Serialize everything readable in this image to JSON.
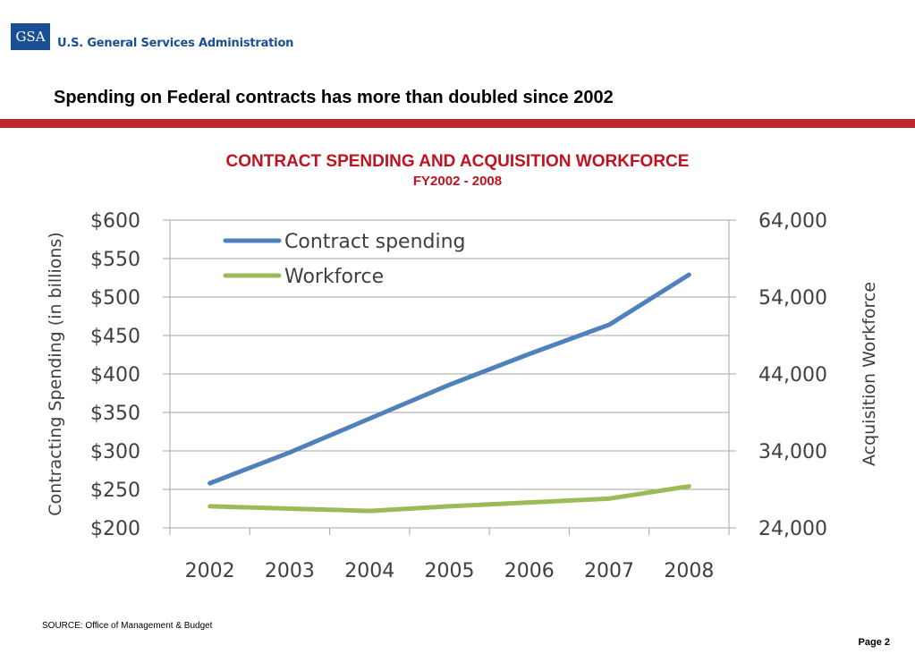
{
  "header": {
    "logo_text": "GSA",
    "agency_name": "U.S. General Services Administration",
    "headline": "Spending on Federal contracts has more than doubled since 2002"
  },
  "chart_data": {
    "type": "line",
    "title": "CONTRACT SPENDING AND ACQUISITION WORKFORCE",
    "subtitle": "FY2002 - 2008",
    "categories": [
      "2002",
      "2003",
      "2004",
      "2005",
      "2006",
      "2007",
      "2008"
    ],
    "ylabel": "Contracting Spending (in billions)",
    "y2label": "Acquisition Workforce",
    "ylim": [
      200,
      600
    ],
    "y_ticks": [
      200,
      250,
      300,
      350,
      400,
      450,
      500,
      550,
      600
    ],
    "y_tick_labels": [
      "$200",
      "$250",
      "$300",
      "$350",
      "$400",
      "$450",
      "$500",
      "$550",
      "$600"
    ],
    "y2lim": [
      24000,
      64000
    ],
    "y2_ticks": [
      24000,
      34000,
      44000,
      54000,
      64000
    ],
    "y2_tick_labels": [
      "24,000",
      "34,000",
      "44,000",
      "54,000",
      "64,000"
    ],
    "grid": true,
    "legend_position": "top-left",
    "series": [
      {
        "name": "Contract spending",
        "axis": "left",
        "color": "#4f81bd",
        "values": [
          258,
          298,
          342,
          386,
          426,
          464,
          529
        ]
      },
      {
        "name": "Workforce",
        "axis": "right",
        "color": "#9bbb59",
        "values": [
          26800,
          26500,
          26200,
          26800,
          27300,
          27800,
          29400
        ]
      }
    ]
  },
  "footer": {
    "source": "SOURCE:  Office of Management & Budget",
    "page": "Page 2"
  }
}
